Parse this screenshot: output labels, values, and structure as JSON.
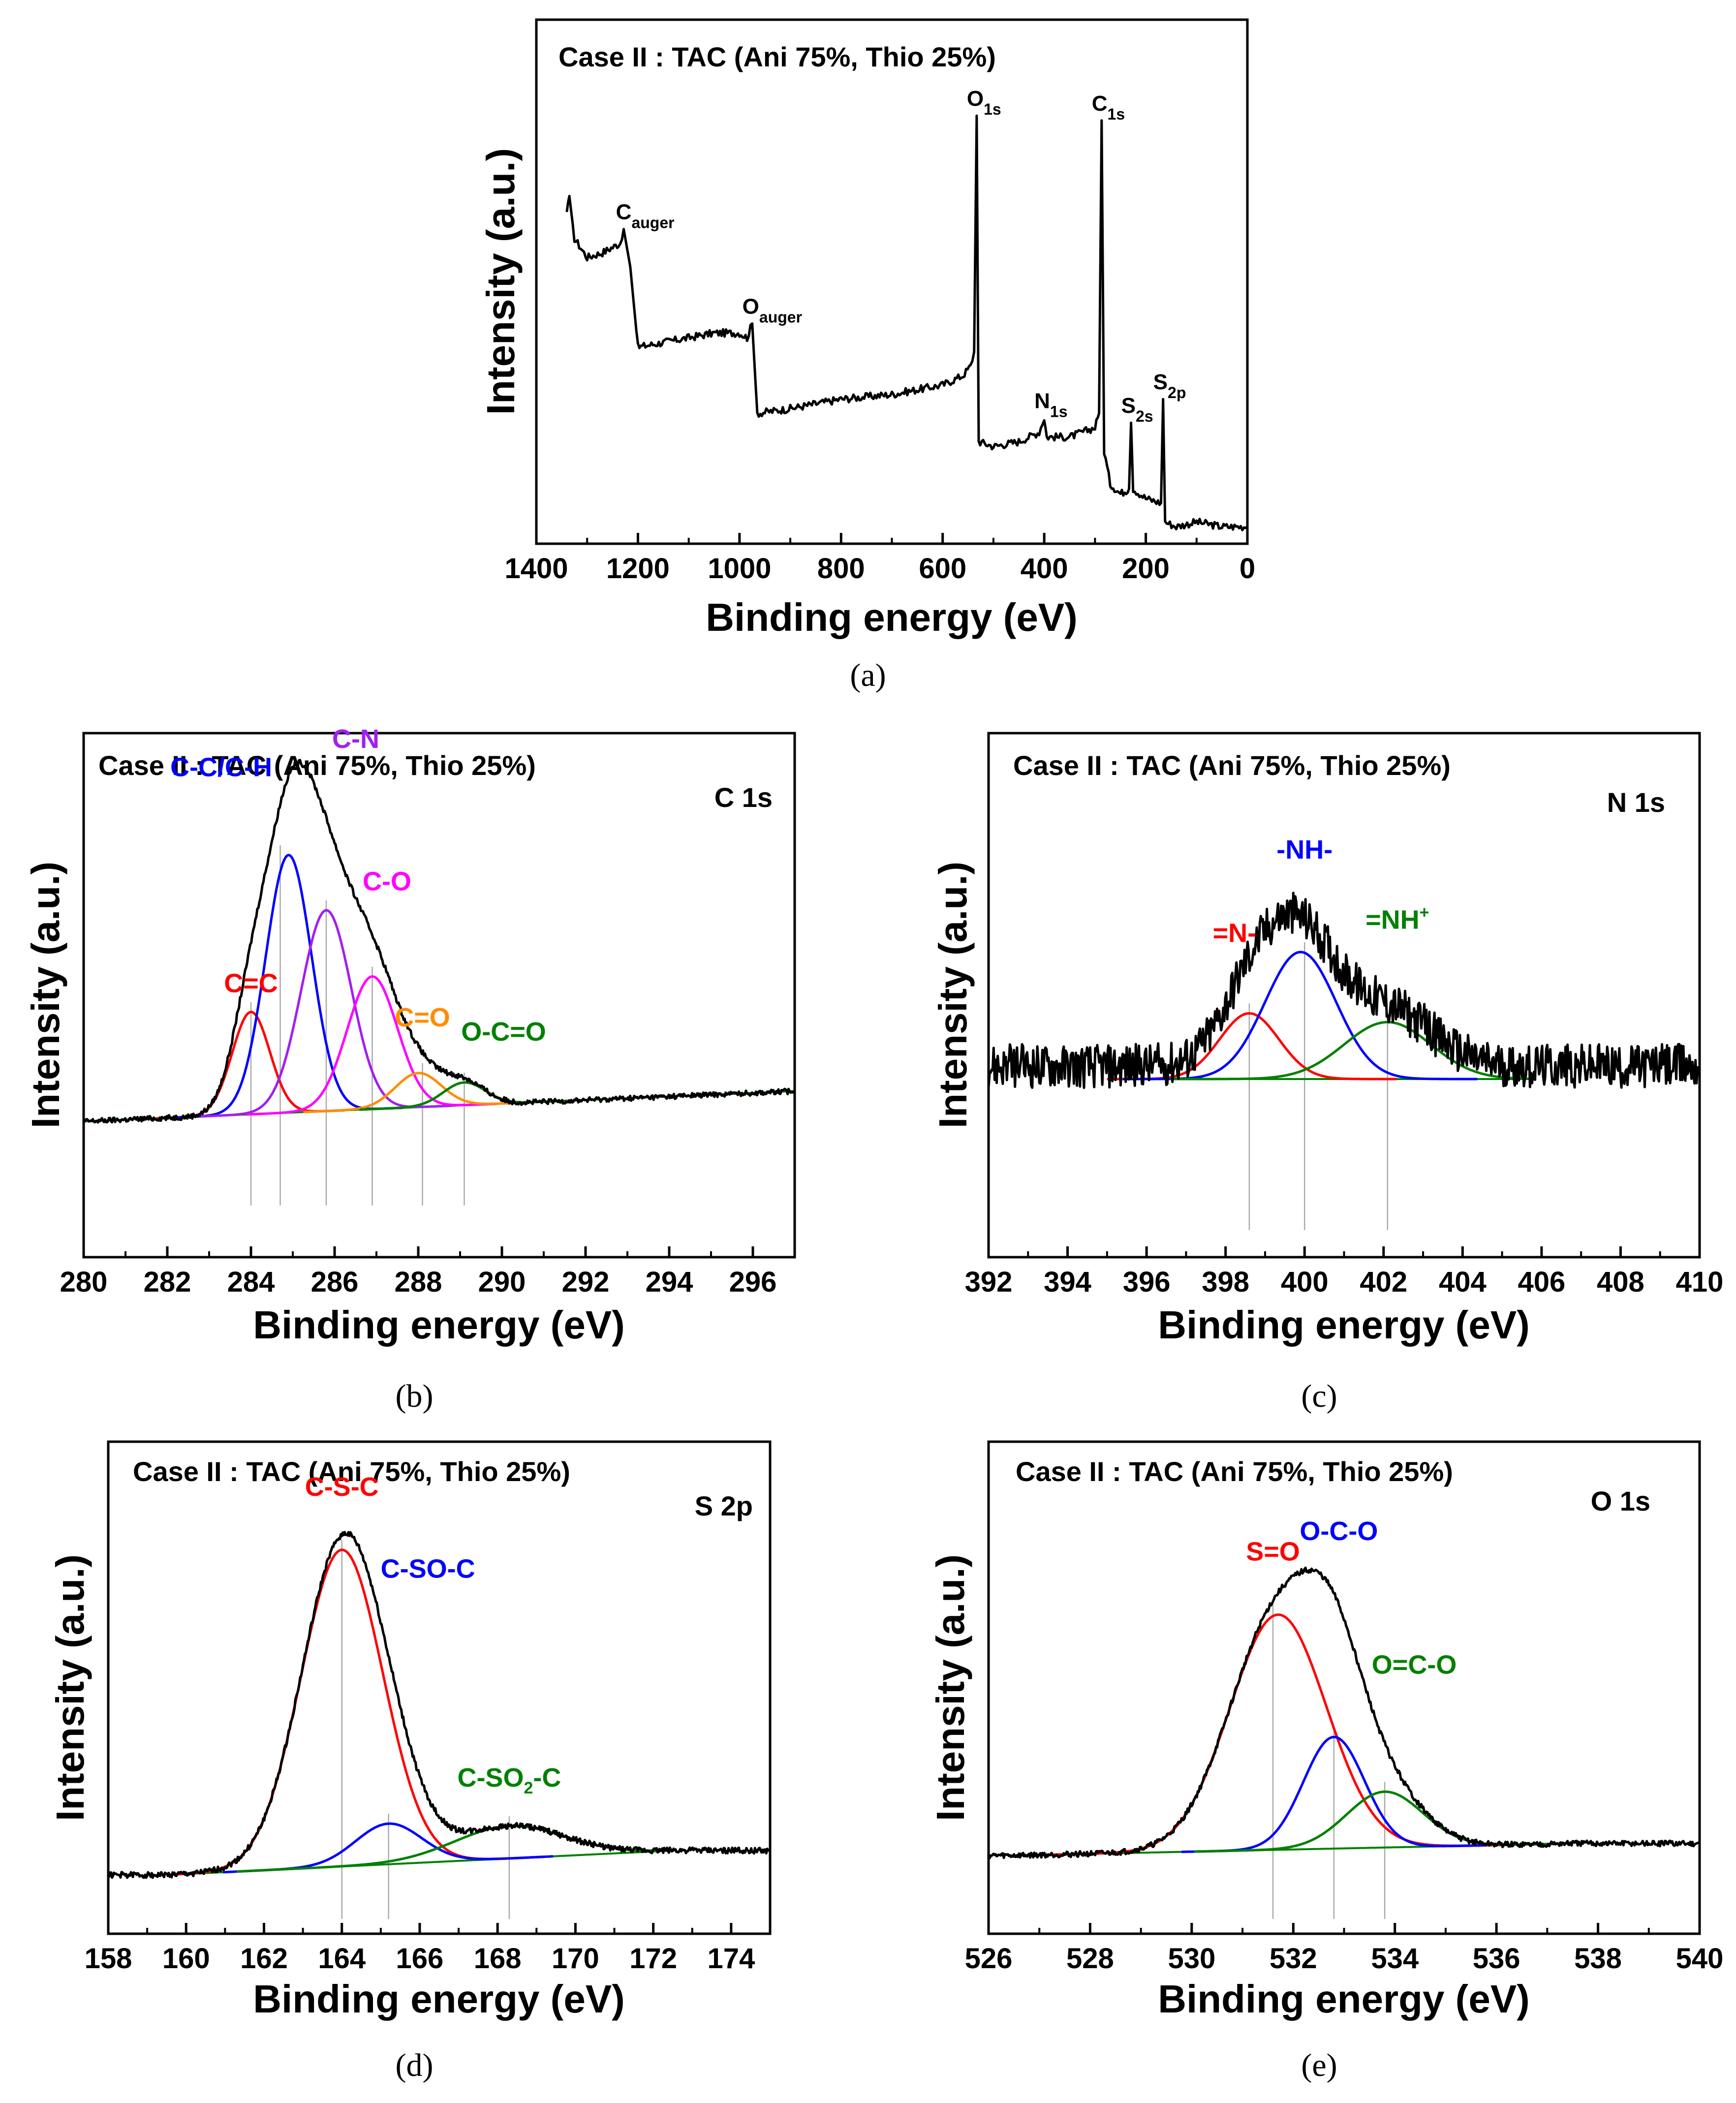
{
  "figure": {
    "case_label": "Case II : TAC (Ani 75%, Thio 25%)",
    "xlabel": "Binding energy (eV)",
    "ylabel": "Intensity (a.u.)"
  },
  "chart_data": [
    {
      "id": "a",
      "type": "line",
      "caption": "(a)",
      "title": "Case II : TAC (Ani 75%, Thio 25%)",
      "xlabel": "Binding energy (eV)",
      "ylabel": "Intensity (a.u.)",
      "xlim": [
        1400,
        0
      ],
      "ylim": [
        0,
        100
      ],
      "x_reversed": true,
      "x_ticks": [
        "1400",
        "1200",
        "1000",
        "800",
        "600",
        "400",
        "200",
        "0"
      ],
      "survey_points": [
        [
          1340,
          67
        ],
        [
          1335,
          71
        ],
        [
          1325,
          62
        ],
        [
          1300,
          58
        ],
        [
          1270,
          59
        ],
        [
          1235,
          61
        ],
        [
          1228,
          64
        ],
        [
          1215,
          56
        ],
        [
          1200,
          39
        ],
        [
          1150,
          40
        ],
        [
          1100,
          41
        ],
        [
          1050,
          42
        ],
        [
          1000,
          42
        ],
        [
          985,
          41
        ],
        [
          975,
          44
        ],
        [
          965,
          25
        ],
        [
          900,
          26
        ],
        [
          800,
          28
        ],
        [
          700,
          29
        ],
        [
          600,
          31
        ],
        [
          560,
          33
        ],
        [
          545,
          35
        ],
        [
          538,
          38
        ],
        [
          533,
          88
        ],
        [
          529,
          19
        ],
        [
          500,
          18
        ],
        [
          450,
          19
        ],
        [
          410,
          21
        ],
        [
          400,
          24
        ],
        [
          395,
          20
        ],
        [
          350,
          20
        ],
        [
          300,
          22
        ],
        [
          292,
          25
        ],
        [
          287,
          87
        ],
        [
          282,
          17
        ],
        [
          270,
          10
        ],
        [
          250,
          8
        ],
        [
          233,
          9
        ],
        [
          229,
          23
        ],
        [
          225,
          9
        ],
        [
          200,
          7
        ],
        [
          170,
          6
        ],
        [
          166,
          28
        ],
        [
          162,
          2
        ],
        [
          140,
          1
        ],
        [
          100,
          2
        ],
        [
          50,
          1
        ],
        [
          10,
          1
        ],
        [
          0,
          1
        ]
      ],
      "annotations": [
        {
          "base": "C",
          "sub": "auger",
          "x": 1224
        },
        {
          "base": "O",
          "sub": "auger",
          "x": 975
        },
        {
          "base": "O",
          "sub": "1s",
          "x": 533
        },
        {
          "base": "C",
          "sub": "1s",
          "x": 287
        },
        {
          "base": "N",
          "sub": "1s",
          "x": 400
        },
        {
          "base": "S",
          "sub": "2s",
          "x": 229
        },
        {
          "base": "S",
          "sub": "2p",
          "x": 166
        }
      ]
    },
    {
      "id": "b",
      "type": "line",
      "caption": "(b)",
      "title": "Case II : TAC (Ani 75%, Thio 25%)",
      "region": "C 1s",
      "xlabel": "Binding energy (eV)",
      "ylabel": "Intensity (a.u.)",
      "xlim": [
        280,
        297
      ],
      "ylim": [
        0,
        100
      ],
      "x_ticks": [
        "280",
        "282",
        "284",
        "286",
        "288",
        "290",
        "292",
        "294",
        "296"
      ],
      "baseline": {
        "start": 17,
        "end": 25,
        "x_start": 280,
        "x_end": 297
      },
      "components": [
        {
          "name": "C=C",
          "center": 284.0,
          "amplitude": 27,
          "sigma": 0.45,
          "color": "#ff0000"
        },
        {
          "name": "C-C/C-H",
          "center": 284.9,
          "amplitude": 68,
          "sigma": 0.55,
          "color": "#0000ff"
        },
        {
          "name": "C-N",
          "center": 285.8,
          "amplitude": 53,
          "sigma": 0.6,
          "color": "#a020f0"
        },
        {
          "name": "C-O",
          "center": 286.9,
          "amplitude": 35,
          "sigma": 0.6,
          "color": "#ff00ff"
        },
        {
          "name": "C=O",
          "center": 288.0,
          "amplitude": 9,
          "sigma": 0.55,
          "color": "#ff8c00"
        },
        {
          "name": "O-C=O",
          "center": 289.1,
          "amplitude": 6,
          "sigma": 0.5,
          "color": "#008000"
        }
      ],
      "label_positions": {
        "C=C": 284.0,
        "C-C/C-H": 284.7,
        "C-N": 285.8,
        "C-O": 286.9,
        "C=O": 288.1,
        "O-C=O": 289.1
      }
    },
    {
      "id": "c",
      "type": "line",
      "caption": "(c)",
      "title": "Case II : TAC (Ani 75%, Thio 25%)",
      "region": "N 1s",
      "xlabel": "Binding energy (eV)",
      "ylabel": "Intensity (a.u.)",
      "xlim": [
        392,
        410
      ],
      "ylim": [
        0,
        100
      ],
      "x_ticks": [
        "392",
        "394",
        "396",
        "398",
        "400",
        "402",
        "404",
        "406",
        "408",
        "410"
      ],
      "baseline": {
        "start": 30,
        "end": 30,
        "x_start": 395,
        "x_end": 405.8
      },
      "components": [
        {
          "name": "=N-",
          "center": 398.6,
          "amplitude": 15,
          "sigma": 0.75,
          "color": "#ff0000"
        },
        {
          "name": "-NH-",
          "center": 399.9,
          "amplitude": 29,
          "sigma": 0.9,
          "color": "#0000ff"
        },
        {
          "name": "=NH+",
          "center": 402.1,
          "amplitude": 13,
          "sigma": 1.1,
          "color": "#008000"
        }
      ],
      "label_positions": {
        "=N-": 398.6,
        "-NH-": 400.0,
        "=NH+": 402.1
      },
      "noise_level": 5,
      "envelope_range": [
        392,
        410
      ],
      "noise_baseline": 33
    },
    {
      "id": "d",
      "type": "line",
      "caption": "(d)",
      "title": "Case II : TAC (Ani 75%, Thio 25%)",
      "region": "S 2p",
      "xlabel": "Binding energy (eV)",
      "ylabel": "Intensity (a.u.)",
      "xlim": [
        158,
        175
      ],
      "ylim": [
        0,
        100
      ],
      "x_ticks": [
        "158",
        "160",
        "162",
        "164",
        "166",
        "168",
        "170",
        "172",
        "174"
      ],
      "baseline": {
        "start": 6,
        "end": 12,
        "x_start": 159.5,
        "x_end": 172.5
      },
      "components": [
        {
          "name": "C-S-C",
          "center": 164.0,
          "amplitude": 78,
          "sigma": 1.05,
          "color": "#ff0000"
        },
        {
          "name": "C-SO-C",
          "center": 165.2,
          "amplitude": 10,
          "sigma": 0.85,
          "color": "#0000ff"
        },
        {
          "name": "C-SO2-C",
          "center": 168.3,
          "amplitude": 8,
          "sigma": 1.4,
          "color": "#008000"
        }
      ],
      "label_positions": {
        "C-S-C": 164.0,
        "C-SO-C": 165.2,
        "C-SO2-C": 168.3
      }
    },
    {
      "id": "e",
      "type": "line",
      "caption": "(e)",
      "title": "Case II : TAC (Ani 75%, Thio 25%)",
      "region": "O 1s",
      "xlabel": "Binding energy (eV)",
      "ylabel": "Intensity (a.u.)",
      "xlim": [
        526,
        540
      ],
      "ylim": [
        0,
        100
      ],
      "x_ticks": [
        "526",
        "528",
        "530",
        "532",
        "534",
        "536",
        "538",
        "540"
      ],
      "baseline": {
        "start": 11,
        "end": 14,
        "x_start": 526.5,
        "x_end": 537.5
      },
      "components": [
        {
          "name": "S=O",
          "center": 531.7,
          "amplitude": 59,
          "sigma": 0.95,
          "color": "#ff0000"
        },
        {
          "name": "O-C-O",
          "center": 532.8,
          "amplitude": 28,
          "sigma": 0.6,
          "color": "#0000ff"
        },
        {
          "name": "O=C-O",
          "center": 533.8,
          "amplitude": 14,
          "sigma": 0.75,
          "color": "#008000"
        }
      ],
      "label_positions": {
        "S=O": 531.6,
        "O-C-O": 532.8,
        "O=C-O": 533.8
      }
    }
  ]
}
